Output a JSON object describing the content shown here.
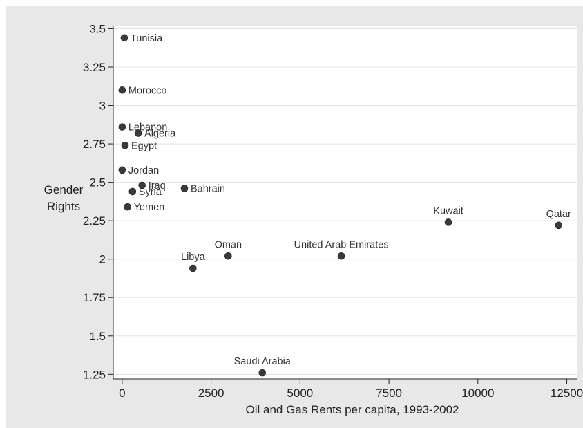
{
  "chart_data": {
    "type": "scatter",
    "title": "",
    "xlabel": "Oil and Gas Rents per capita, 1993-2002",
    "ylabel_lines": [
      "Gender",
      "Rights"
    ],
    "xlim": [
      -250,
      12800
    ],
    "ylim": [
      1.22,
      3.52
    ],
    "x_ticks": [
      0,
      2500,
      5000,
      7500,
      10000,
      12500
    ],
    "x_tick_labels": [
      "0",
      "2500",
      "5000",
      "7500",
      "10000",
      "12500"
    ],
    "y_ticks": [
      1.25,
      1.5,
      1.75,
      2,
      2.25,
      2.5,
      2.75,
      3,
      3.25,
      3.5
    ],
    "y_tick_labels": [
      "1.25",
      "1.5",
      "1.75",
      "2",
      "2.25",
      "2.5",
      "2.75",
      "3",
      "3.25",
      "3.5"
    ],
    "grid": true,
    "point_color": "#3a3a3a",
    "points": [
      {
        "label": "Tunisia",
        "x": 60,
        "y": 3.44,
        "pos": "right"
      },
      {
        "label": "Morocco",
        "x": 0,
        "y": 3.1,
        "pos": "right"
      },
      {
        "label": "Lebanon",
        "x": 0,
        "y": 2.86,
        "pos": "right"
      },
      {
        "label": "Algeria",
        "x": 450,
        "y": 2.82,
        "pos": "right"
      },
      {
        "label": "Egypt",
        "x": 80,
        "y": 2.74,
        "pos": "right"
      },
      {
        "label": "Jordan",
        "x": 0,
        "y": 2.58,
        "pos": "right"
      },
      {
        "label": "Iraq",
        "x": 560,
        "y": 2.48,
        "pos": "right"
      },
      {
        "label": "Syria",
        "x": 290,
        "y": 2.44,
        "pos": "right"
      },
      {
        "label": "Bahrain",
        "x": 1750,
        "y": 2.46,
        "pos": "right"
      },
      {
        "label": "Yemen",
        "x": 150,
        "y": 2.34,
        "pos": "right"
      },
      {
        "label": "Kuwait",
        "x": 9170,
        "y": 2.24,
        "pos": "top"
      },
      {
        "label": "Qatar",
        "x": 12270,
        "y": 2.22,
        "pos": "top"
      },
      {
        "label": "Oman",
        "x": 2980,
        "y": 2.02,
        "pos": "top"
      },
      {
        "label": "United Arab Emirates",
        "x": 6160,
        "y": 2.02,
        "pos": "top"
      },
      {
        "label": "Libya",
        "x": 1990,
        "y": 1.94,
        "pos": "top"
      },
      {
        "label": "Saudi Arabia",
        "x": 3940,
        "y": 1.26,
        "pos": "top"
      }
    ]
  }
}
